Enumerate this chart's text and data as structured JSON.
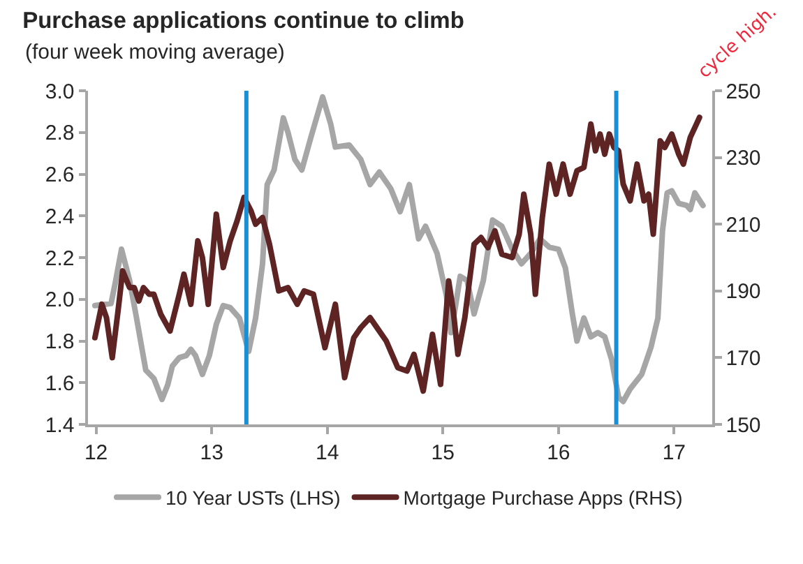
{
  "chart_data": {
    "type": "line",
    "title": "Purchase applications continue to climb",
    "subtitle": "(four week moving average)",
    "xlim": [
      11.93,
      17.33
    ],
    "xticks": [
      12,
      13,
      14,
      15,
      16,
      17
    ],
    "ylim": [
      1.4,
      3.0
    ],
    "yticks": [
      1.4,
      1.6,
      1.8,
      {
        "value": 2.0,
        "label": "2.0"
      },
      2.2,
      2.4,
      2.6,
      2.8,
      {
        "value": 3.0,
        "label": "3.0"
      }
    ],
    "y2lim": [
      150,
      250
    ],
    "y2ticks": [
      150,
      170,
      190,
      210,
      230,
      250
    ],
    "legend": "bottom",
    "ref_lines": [
      {
        "axis": "x",
        "value": 13.3,
        "color": "#1b8fd4"
      },
      {
        "axis": "x",
        "value": 16.5,
        "color": "#1b8fd4"
      }
    ],
    "annotations": [
      "cycle high."
    ],
    "series": [
      {
        "name": "10 Year USTs (LHS)",
        "color": "#a6a6a6",
        "axis": "y",
        "x": [
          11.99,
          12.13,
          12.17,
          12.22,
          12.29,
          12.35,
          12.43,
          12.5,
          12.57,
          12.62,
          12.66,
          12.72,
          12.78,
          12.82,
          12.86,
          12.92,
          12.98,
          13.04,
          13.1,
          13.16,
          13.24,
          13.32,
          13.38,
          13.44,
          13.48,
          13.54,
          13.62,
          13.66,
          13.72,
          13.78,
          13.86,
          13.96,
          14.03,
          14.07,
          14.19,
          14.29,
          14.37,
          14.45,
          14.55,
          14.63,
          14.71,
          14.79,
          14.85,
          14.95,
          15.03,
          15.07,
          15.11,
          15.15,
          15.21,
          15.27,
          15.35,
          15.43,
          15.51,
          15.6,
          15.68,
          15.76,
          15.84,
          15.92,
          16.0,
          16.06,
          16.12,
          16.16,
          16.22,
          16.28,
          16.34,
          16.4,
          16.46,
          16.52,
          16.56,
          16.62,
          16.72,
          16.8,
          16.86,
          16.9,
          16.94,
          16.98,
          17.04,
          17.11,
          17.14,
          17.18,
          17.25
        ],
        "values": [
          1.97,
          1.98,
          2.09,
          2.24,
          2.09,
          1.91,
          1.66,
          1.62,
          1.52,
          1.59,
          1.68,
          1.72,
          1.73,
          1.76,
          1.73,
          1.64,
          1.73,
          1.88,
          1.97,
          1.96,
          1.91,
          1.75,
          1.91,
          2.17,
          2.55,
          2.62,
          2.87,
          2.8,
          2.67,
          2.62,
          2.78,
          2.97,
          2.84,
          2.73,
          2.74,
          2.67,
          2.55,
          2.61,
          2.53,
          2.42,
          2.55,
          2.29,
          2.35,
          2.22,
          2.02,
          1.84,
          1.97,
          2.11,
          2.09,
          1.93,
          2.09,
          2.38,
          2.35,
          2.24,
          2.17,
          2.22,
          2.29,
          2.25,
          2.24,
          2.15,
          1.93,
          1.8,
          1.91,
          1.82,
          1.84,
          1.82,
          1.71,
          1.53,
          1.51,
          1.57,
          1.64,
          1.77,
          1.91,
          2.33,
          2.51,
          2.52,
          2.46,
          2.45,
          2.43,
          2.51,
          2.45
        ]
      },
      {
        "name": "Mortgage Purchase Apps (RHS)",
        "color": "#5e2424",
        "axis": "y2",
        "x": [
          11.99,
          12.05,
          12.09,
          12.14,
          12.19,
          12.23,
          12.29,
          12.33,
          12.37,
          12.41,
          12.46,
          12.5,
          12.56,
          12.64,
          12.72,
          12.76,
          12.82,
          12.88,
          12.92,
          12.97,
          13.04,
          13.1,
          13.16,
          13.22,
          13.28,
          13.34,
          13.38,
          13.44,
          13.5,
          13.58,
          13.66,
          13.74,
          13.8,
          13.88,
          13.98,
          14.07,
          14.15,
          14.23,
          14.29,
          14.37,
          14.43,
          14.51,
          14.61,
          14.69,
          14.75,
          14.83,
          14.91,
          14.98,
          15.05,
          15.09,
          15.13,
          15.19,
          15.27,
          15.33,
          15.39,
          15.45,
          15.51,
          15.6,
          15.66,
          15.7,
          15.76,
          15.8,
          15.86,
          15.92,
          15.98,
          16.04,
          16.1,
          16.16,
          16.22,
          16.28,
          16.32,
          16.36,
          16.4,
          16.44,
          16.48,
          16.52,
          16.56,
          16.62,
          16.68,
          16.74,
          16.78,
          16.82,
          16.88,
          16.92,
          16.98,
          17.04,
          17.08,
          17.14,
          17.18,
          17.22
        ],
        "values": [
          176,
          186,
          182,
          170,
          184,
          196,
          191,
          191,
          187,
          191,
          189,
          189,
          183,
          178,
          189,
          195,
          186,
          205,
          200,
          186,
          213,
          197,
          205,
          211,
          218,
          214,
          210,
          212,
          204,
          190,
          191,
          186,
          190,
          189,
          173,
          186,
          164,
          176,
          179,
          182,
          179,
          175,
          167,
          166,
          171,
          160,
          177,
          162,
          193,
          184,
          171,
          182,
          204,
          206,
          203,
          208,
          201,
          200,
          207,
          219,
          207,
          189,
          212,
          228,
          219,
          228,
          219,
          226,
          227,
          240,
          232,
          237,
          231,
          237,
          233,
          232,
          222,
          217,
          228,
          217,
          219,
          207,
          235,
          233,
          237,
          231,
          228,
          236,
          239,
          242
        ]
      }
    ]
  }
}
